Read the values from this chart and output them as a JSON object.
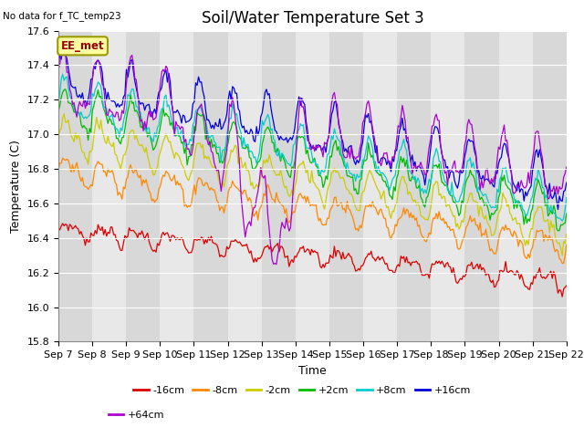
{
  "title": "Soil/Water Temperature Set 3",
  "xlabel": "Time",
  "ylabel": "Temperature (C)",
  "annotation_text": "No data for f_TC_temp23",
  "box_label": "EE_met",
  "ylim": [
    15.8,
    17.6
  ],
  "yticks": [
    15.8,
    16.0,
    16.2,
    16.4,
    16.6,
    16.8,
    17.0,
    17.2,
    17.4,
    17.6
  ],
  "xtick_labels": [
    "Sep 7",
    "Sep 8",
    "Sep 9",
    "Sep 10",
    "Sep 11",
    "Sep 12",
    "Sep 13",
    "Sep 14",
    "Sep 15",
    "Sep 16",
    "Sep 17",
    "Sep 18",
    "Sep 19",
    "Sep 20",
    "Sep 21",
    "Sep 22"
  ],
  "series_colors": {
    "-16cm": "#dd0000",
    "-8cm": "#ff8800",
    "-2cm": "#cccc00",
    "+2cm": "#00bb00",
    "+8cm": "#00cccc",
    "+16cm": "#0000dd",
    "+64cm": "#aa00cc"
  },
  "legend_order": [
    "-16cm",
    "-8cm",
    "-2cm",
    "+2cm",
    "+8cm",
    "+16cm",
    "+64cm"
  ],
  "fig_bg": "#ffffff",
  "plot_bg": "#e8e8e8",
  "grid_color": "#ffffff",
  "title_fontsize": 12,
  "label_fontsize": 9,
  "tick_fontsize": 8
}
